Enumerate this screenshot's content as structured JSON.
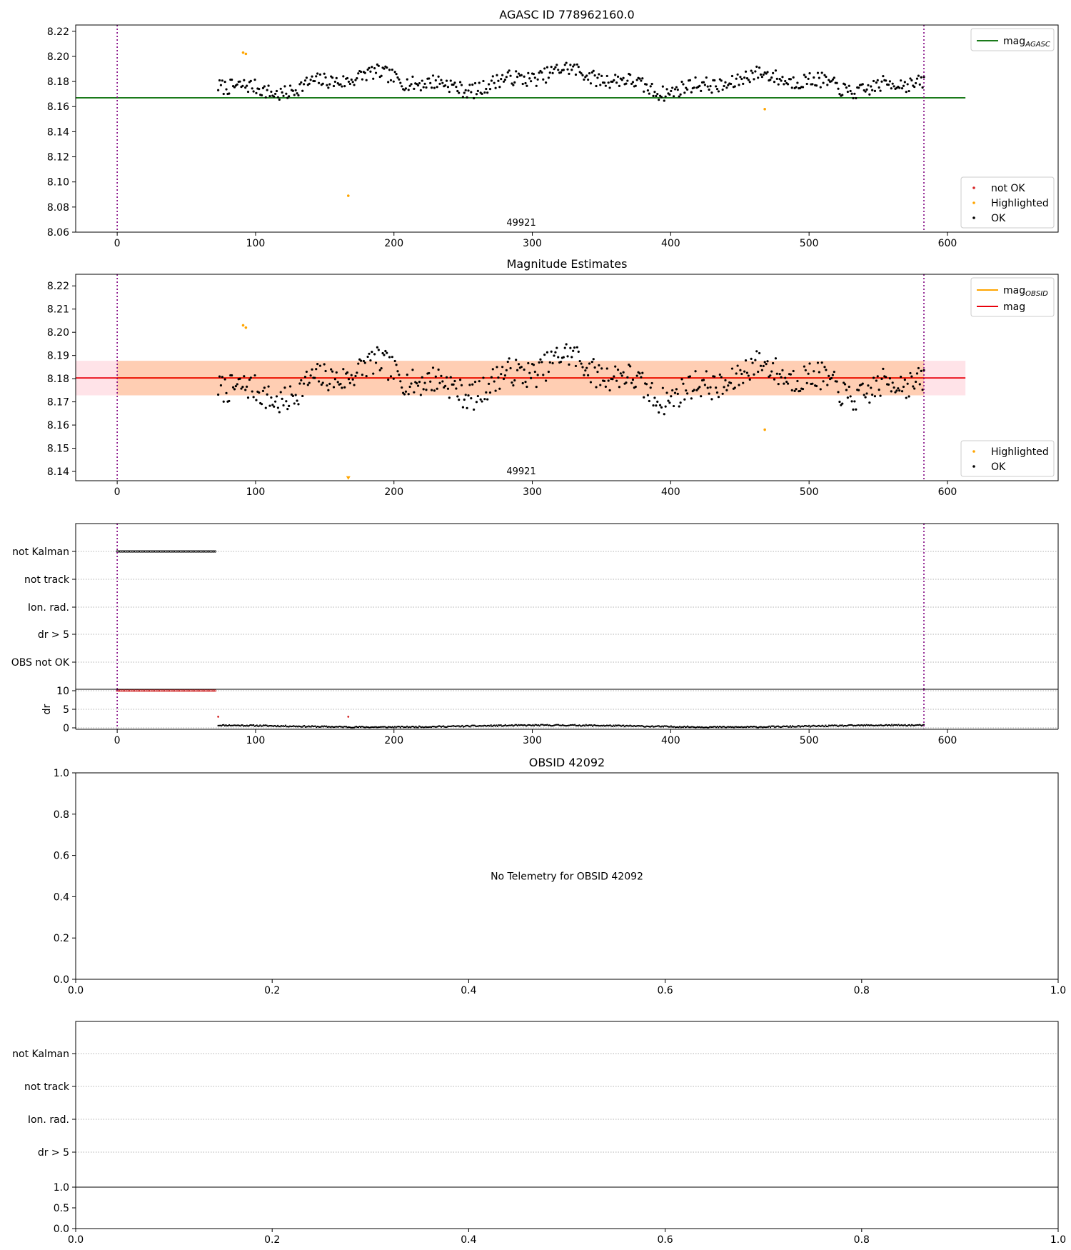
{
  "chart_data": [
    {
      "type": "scatter",
      "title": "AGASC ID 778962160.0",
      "xlim": [
        -30,
        680
      ],
      "ylim": [
        8.06,
        8.225
      ],
      "xticks": [
        0,
        100,
        200,
        300,
        400,
        500,
        600
      ],
      "xtick_labels": [
        "0",
        "100",
        "200",
        "300",
        "400",
        "500",
        "600"
      ],
      "yticks": [
        8.06,
        8.08,
        8.1,
        8.12,
        8.14,
        8.16,
        8.18,
        8.2,
        8.22
      ],
      "ytick_labels": [
        "8.06",
        "8.08",
        "8.10",
        "8.12",
        "8.14",
        "8.16",
        "8.18",
        "8.20",
        "8.22"
      ],
      "hline": {
        "y": 8.167,
        "x_end": 613,
        "color": "#1a7a1a",
        "label": "mag",
        "sub": "AGASC"
      },
      "vlines": [
        0,
        583
      ],
      "vline_color": "#800080",
      "obs_label": {
        "text": "49921",
        "x": 292
      },
      "legend_lines": [
        {
          "label": "mag",
          "sub": "AGASC",
          "color": "#1a7a1a"
        }
      ],
      "legend_points": [
        {
          "label": "not OK",
          "color": "#d62728"
        },
        {
          "label": "Highlighted",
          "color": "#ffa500"
        },
        {
          "label": "OK",
          "color": "#000000"
        }
      ],
      "series": [
        {
          "name": "OK",
          "color": "#000000",
          "generator": "mag",
          "x_range": [
            73,
            583
          ],
          "count": 520,
          "seed": 7
        },
        {
          "name": "Highlighted",
          "color": "#ffa500",
          "points": [
            [
              91,
              8.203
            ],
            [
              93,
              8.202
            ],
            [
              167,
              8.089
            ],
            [
              468,
              8.158
            ]
          ]
        }
      ]
    },
    {
      "type": "scatter",
      "title": "Magnitude Estimates",
      "xlim": [
        -30,
        680
      ],
      "ylim": [
        8.136,
        8.225
      ],
      "xticks": [
        0,
        100,
        200,
        300,
        400,
        500,
        600
      ],
      "xtick_labels": [
        "0",
        "100",
        "200",
        "300",
        "400",
        "500",
        "600"
      ],
      "yticks": [
        8.14,
        8.15,
        8.16,
        8.17,
        8.18,
        8.19,
        8.2,
        8.21,
        8.22
      ],
      "ytick_labels": [
        "8.14",
        "8.15",
        "8.16",
        "8.17",
        "8.18",
        "8.19",
        "8.20",
        "8.21",
        "8.22"
      ],
      "hline": {
        "y": 8.1803,
        "x_end": 613,
        "color": "#e8000b",
        "label": "mag"
      },
      "band_outer": {
        "y0": 8.1728,
        "y1": 8.1877,
        "x_end": 613,
        "color": "#ffc0cb"
      },
      "band_inner": {
        "y0": 8.1728,
        "y1": 8.1877,
        "x_start": 0,
        "x_end": 583,
        "color": "#ffc090"
      },
      "obsid_line": {
        "y": 8.1803,
        "x_start": 0,
        "x_end": 583,
        "color": "#ffa500"
      },
      "vlines": [
        0,
        583
      ],
      "vline_color": "#800080",
      "obs_label": {
        "text": "49921",
        "x": 292
      },
      "legend_lines": [
        {
          "label": "mag",
          "sub": "OBSID",
          "color": "#ffa500"
        },
        {
          "label": "mag",
          "color": "#e8000b"
        }
      ],
      "legend_points": [
        {
          "label": "Highlighted",
          "color": "#ffa500"
        },
        {
          "label": "OK",
          "color": "#000000"
        }
      ],
      "series": [
        {
          "name": "OK",
          "color": "#000000",
          "generator": "mag",
          "x_range": [
            73,
            583
          ],
          "count": 520,
          "seed": 7
        },
        {
          "name": "Highlighted",
          "color": "#ffa500",
          "points": [
            [
              91,
              8.203
            ],
            [
              93,
              8.202
            ],
            [
              468,
              8.158
            ]
          ]
        },
        {
          "name": "Highlighted (off-axis marker)",
          "color": "#ffa500",
          "marker": "triangle-down",
          "points": [
            [
              167,
              8.137
            ]
          ]
        }
      ]
    },
    {
      "type": "scatter",
      "title": "",
      "xlim": [
        -30,
        680
      ],
      "category_labels": [
        "not Kalman",
        "not track",
        "Ion. rad.",
        "dr > 5",
        "OBS not OK"
      ],
      "vlines": [
        0,
        583
      ],
      "vline_color": "#800080",
      "flag_points": {
        "category": "not Kalman",
        "x_range": [
          0,
          72
        ],
        "step": 1.2,
        "color": "#000000"
      },
      "dr_panel": {
        "ylabel": "dr",
        "ylim": [
          0,
          10
        ],
        "yticks": [
          0,
          5,
          10
        ],
        "ytick_labels": [
          "0",
          "5",
          "10"
        ],
        "xticks": [
          0,
          100,
          200,
          300,
          400,
          500,
          600
        ],
        "xtick_labels": [
          "0",
          "100",
          "200",
          "300",
          "400",
          "500",
          "600"
        ],
        "red_points": {
          "y": 10,
          "x_range": [
            0,
            72
          ],
          "step": 1.2,
          "color": "#d62728"
        },
        "red_singles": [
          [
            73,
            3.0
          ],
          [
            167,
            3.0
          ]
        ],
        "black_series": {
          "x_range": [
            73,
            583
          ],
          "count": 640,
          "y_mean": 0.45,
          "color": "#000000"
        }
      }
    },
    {
      "type": "scatter",
      "title": "OBSID 42092",
      "xlim": [
        0,
        1
      ],
      "ylim": [
        0,
        1
      ],
      "xticks": [
        0,
        0.2,
        0.4,
        0.6,
        0.8,
        1.0
      ],
      "xtick_labels": [
        "0.0",
        "0.2",
        "0.4",
        "0.6",
        "0.8",
        "1.0"
      ],
      "yticks": [
        0,
        0.2,
        0.4,
        0.6,
        0.8,
        1.0
      ],
      "ytick_labels": [
        "0.0",
        "0.2",
        "0.4",
        "0.6",
        "0.8",
        "1.0"
      ],
      "annotation": "No Telemetry for OBSID 42092"
    },
    {
      "type": "scatter",
      "title": "",
      "category_labels": [
        "not Kalman",
        "not track",
        "Ion. rad.",
        "dr > 5"
      ],
      "clipped_tick_labels": [
        "0.0",
        "0"
      ],
      "dr_panel": {
        "ylim": [
          0,
          1
        ],
        "yticks": [
          0,
          0.5,
          1.0
        ],
        "ytick_labels": [
          "0.0",
          "0.5",
          "1.0"
        ],
        "xticks": [
          0,
          0.2,
          0.4,
          0.6,
          0.8,
          1.0
        ],
        "xtick_labels": [
          "0.0",
          "0.2",
          "0.4",
          "0.6",
          "0.8",
          "1.0"
        ]
      }
    }
  ]
}
